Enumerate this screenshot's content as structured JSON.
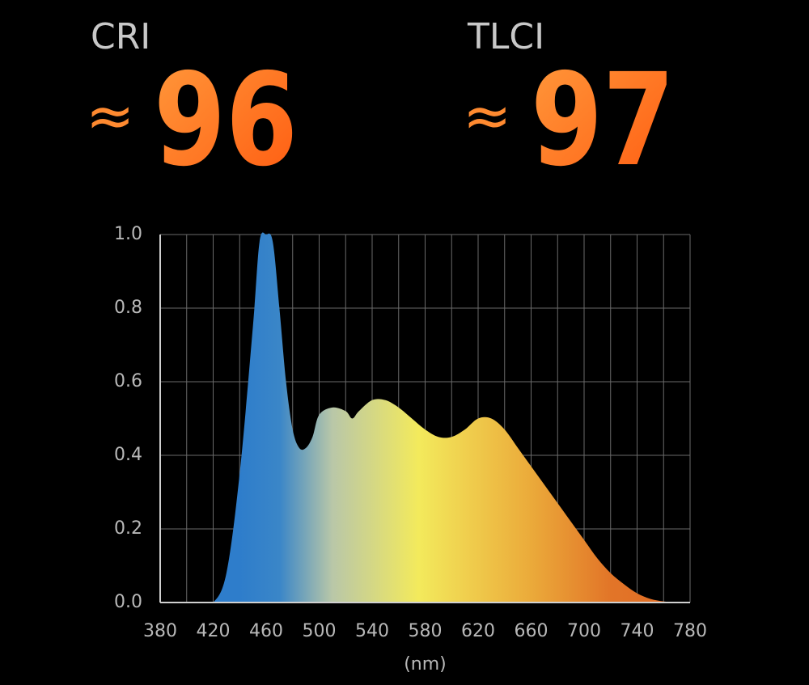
{
  "metrics": [
    {
      "label": "CRI",
      "prefix": "≈",
      "value": 96
    },
    {
      "label": "TLCI",
      "prefix": "≈",
      "value": 97
    }
  ],
  "chart_data": {
    "type": "area",
    "x_label": "(nm)",
    "x": [
      380,
      390,
      400,
      410,
      420,
      430,
      440,
      450,
      455,
      460,
      465,
      470,
      475,
      480,
      485,
      490,
      495,
      500,
      510,
      520,
      525,
      530,
      540,
      550,
      560,
      570,
      580,
      590,
      600,
      610,
      620,
      630,
      640,
      650,
      660,
      670,
      680,
      690,
      700,
      710,
      720,
      730,
      740,
      750,
      760,
      770,
      780
    ],
    "values": [
      0,
      0,
      0,
      0,
      0,
      0.08,
      0.35,
      0.75,
      0.98,
      1.0,
      0.98,
      0.8,
      0.6,
      0.47,
      0.42,
      0.42,
      0.45,
      0.51,
      0.53,
      0.52,
      0.5,
      0.52,
      0.55,
      0.55,
      0.53,
      0.5,
      0.47,
      0.45,
      0.45,
      0.47,
      0.5,
      0.5,
      0.47,
      0.42,
      0.37,
      0.32,
      0.27,
      0.22,
      0.17,
      0.12,
      0.08,
      0.05,
      0.025,
      0.01,
      0.003,
      0,
      0
    ],
    "xlim": [
      380,
      780
    ],
    "xticks": [
      380,
      420,
      460,
      500,
      540,
      580,
      620,
      660,
      700,
      740,
      780
    ],
    "x_minor_ticks": [
      400,
      440,
      480,
      520,
      560,
      600,
      640,
      680,
      720,
      760
    ],
    "ylim": [
      0,
      1
    ],
    "yticks": [
      {
        "value": 0,
        "label": "0.0"
      },
      {
        "value": 0.2,
        "label": "0.2"
      },
      {
        "value": 0.4,
        "label": "0.4"
      },
      {
        "value": 0.6,
        "label": "0.6"
      },
      {
        "value": 0.8,
        "label": "0.8"
      },
      {
        "value": 1,
        "label": "1.0"
      }
    ],
    "grid": true,
    "gradient_stops": [
      {
        "x": 440,
        "color": "#2e7dcb"
      },
      {
        "x": 470,
        "color": "#3a86c8"
      },
      {
        "x": 510,
        "color": "#b9c7a8"
      },
      {
        "x": 575,
        "color": "#f3ea5c"
      },
      {
        "x": 660,
        "color": "#ebaa3a"
      },
      {
        "x": 720,
        "color": "#e27528"
      },
      {
        "x": 780,
        "color": "#e06a24"
      }
    ]
  }
}
